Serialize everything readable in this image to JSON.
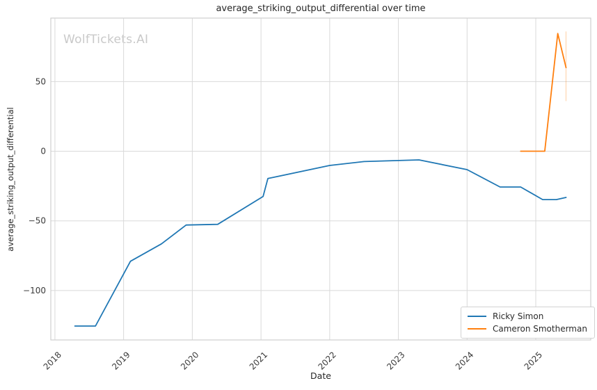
{
  "watermark": "WolfTickets.AI",
  "chart_data": {
    "type": "line",
    "title": "average_striking_output_differential over time",
    "xlabel": "Date",
    "ylabel": "average_striking_output_differential",
    "xlim": [
      2017.94,
      2025.8
    ],
    "ylim": [
      -135.5,
      95.6
    ],
    "x_ticks": [
      2018,
      2019,
      2020,
      2021,
      2022,
      2023,
      2024,
      2025
    ],
    "y_ticks": [
      -100,
      -50,
      0,
      50
    ],
    "grid": true,
    "legend_position": "lower right",
    "series": [
      {
        "name": "Ricky Simon",
        "color": "#1f77b4",
        "x": [
          2018.29,
          2018.59,
          2019.1,
          2019.55,
          2019.91,
          2020.37,
          2021.03,
          2021.1,
          2022.0,
          2022.5,
          2023.3,
          2024.0,
          2024.48,
          2024.78,
          2025.1,
          2025.3,
          2025.44
        ],
        "y": [
          -125.5,
          -125.5,
          -79.0,
          -66.5,
          -53.0,
          -52.5,
          -32.5,
          -19.6,
          -10.2,
          -7.4,
          -6.2,
          -13.2,
          -25.7,
          -25.7,
          -34.7,
          -34.7,
          -33.2
        ]
      },
      {
        "name": "Cameron Smotherman",
        "color": "#ff7f0e",
        "x": [
          2024.78,
          2025.13,
          2025.32,
          2025.44
        ],
        "y": [
          0.0,
          0.0,
          84.5,
          60.0
        ],
        "ci_bar": {
          "x": 2025.44,
          "y_min": 36.0,
          "y_max": 86.0
        }
      }
    ],
    "colors": {
      "grid": "#d9d9d9",
      "spine": "#cfcfcf",
      "tick_text": "#3a3a3a",
      "ci_bar_opacity": 0.3
    }
  }
}
